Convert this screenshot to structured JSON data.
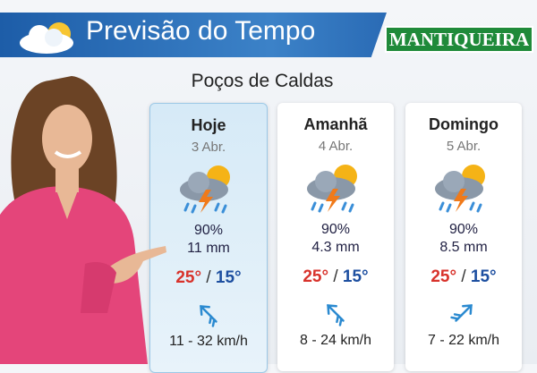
{
  "header": {
    "title": "Previsão do Tempo",
    "brand": "MANTIQUEIRA"
  },
  "city": "Poços de Caldas",
  "temp_separator": "/",
  "days": [
    {
      "name": "Hoje",
      "date": "3 Abr.",
      "rain_chance": "90%",
      "precipitation": "11 mm",
      "max": "25°",
      "min": "15°",
      "wind": "11 - 32 km/h"
    },
    {
      "name": "Amanhã",
      "date": "4 Abr.",
      "rain_chance": "90%",
      "precipitation": "4.3 mm",
      "max": "25°",
      "min": "15°",
      "wind": "8 - 24 km/h"
    },
    {
      "name": "Domingo",
      "date": "5 Abr.",
      "rain_chance": "90%",
      "precipitation": "8.5 mm",
      "max": "25°",
      "min": "15°",
      "wind": "7 - 22 km/h"
    }
  ]
}
